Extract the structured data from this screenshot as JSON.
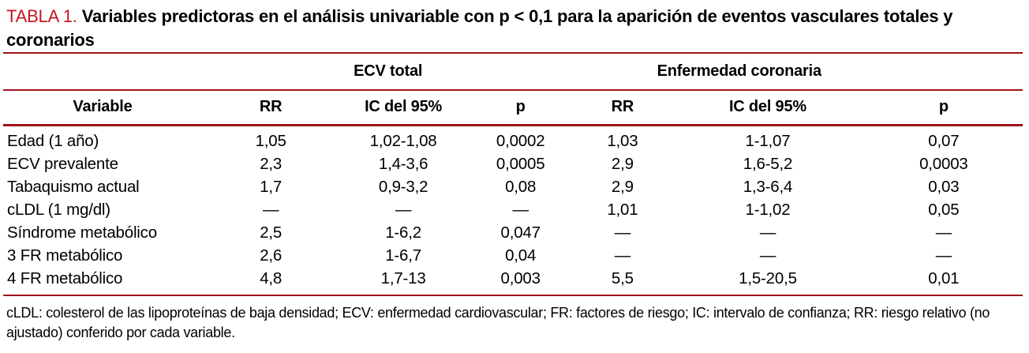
{
  "title": {
    "label": "TABLA 1.",
    "text": "Variables predictoras en el análisis univariable con p < 0,1 para la aparición de eventos vasculares totales y coronarios"
  },
  "table": {
    "group_headers": [
      "ECV total",
      "Enfermedad coronaria"
    ],
    "columns": [
      "Variable",
      "RR",
      "IC del 95%",
      "p",
      "RR",
      "IC del 95%",
      "p"
    ],
    "rows": [
      [
        "Edad (1 año)",
        "1,05",
        "1,02-1,08",
        "0,0002",
        "1,03",
        "1-1,07",
        "0,07"
      ],
      [
        "ECV prevalente",
        "2,3",
        "1,4-3,6",
        "0,0005",
        "2,9",
        "1,6-5,2",
        "0,0003"
      ],
      [
        "Tabaquismo actual",
        "1,7",
        "0,9-3,2",
        "0,08",
        "2,9",
        "1,3-6,4",
        "0,03"
      ],
      [
        "cLDL (1 mg/dl)",
        "—",
        "—",
        "—",
        "1,01",
        "1-1,02",
        "0,05"
      ],
      [
        "Síndrome metabólico",
        "2,5",
        "1-6,2",
        "0,047",
        "—",
        "—",
        "—"
      ],
      [
        "3 FR metabólico",
        "2,6",
        "1-6,7",
        "0,04",
        "—",
        "—",
        "—"
      ],
      [
        "4 FR metabólico",
        "4,8",
        "1,7-13",
        "0,003",
        "5,5",
        "1,5-20,5",
        "0,01"
      ]
    ]
  },
  "footnote": "cLDL: colesterol de las lipoproteínas de baja densidad; ECV: enfermedad cardiovascular; FR: factores de riesgo; IC: intervalo de confianza; RR: riesgo relativo (no ajustado) conferido por cada variable.",
  "colors": {
    "accent_red": "#c5161f",
    "rule_red": "#a01218"
  }
}
